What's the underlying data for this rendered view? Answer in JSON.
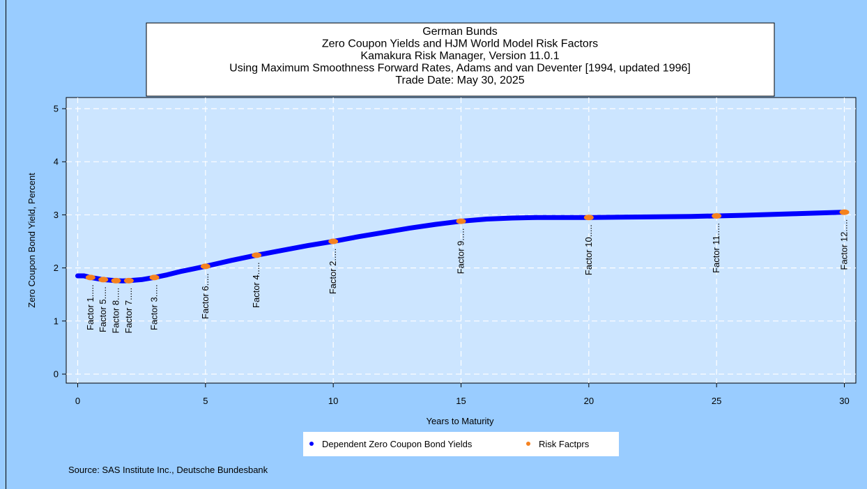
{
  "chart_data": {
    "type": "line",
    "title": [
      "German Bunds",
      "Zero Coupon Yields and HJM World Model Risk Factors",
      "Kamakura Risk Manager, Version 11.0.1",
      "Using Maximum Smoothness Forward Rates, Adams and van Deventer [1994, updated 1996]",
      "Trade Date: May 30, 2025"
    ],
    "x_label": "Years to Maturity",
    "y_label": "Zero Coupon Bond Yield, Percent",
    "source": "Source: SAS Institute Inc., Deutsche Bundesbank",
    "xlim": [
      -0.45,
      30.45
    ],
    "ylim": [
      -0.17,
      5.21
    ],
    "xticks": [
      0,
      5,
      10,
      15,
      20,
      25,
      30
    ],
    "yticks": [
      0,
      1,
      2,
      3,
      4,
      5
    ],
    "grid": true,
    "series": [
      {
        "name": "Dependent Zero Coupon Bond Yields",
        "color": "#0000ff",
        "x": [
          0,
          0.25,
          0.5,
          0.75,
          1,
          1.25,
          1.5,
          1.75,
          2,
          2.5,
          3,
          3.5,
          4,
          4.5,
          5,
          6,
          7,
          8,
          9,
          10,
          11,
          12,
          13,
          14,
          15,
          16,
          17,
          18,
          19,
          20,
          22,
          24,
          25,
          26,
          28,
          30
        ],
        "values": [
          1.85,
          1.85,
          1.82,
          1.8,
          1.78,
          1.77,
          1.76,
          1.755,
          1.76,
          1.78,
          1.82,
          1.87,
          1.93,
          1.98,
          2.03,
          2.14,
          2.24,
          2.33,
          2.42,
          2.5,
          2.59,
          2.67,
          2.75,
          2.82,
          2.88,
          2.92,
          2.94,
          2.95,
          2.95,
          2.95,
          2.96,
          2.97,
          2.98,
          2.99,
          3.02,
          3.05
        ]
      },
      {
        "name": "Risk Factprs",
        "color": "#f5821f",
        "x": [
          0.5,
          1,
          1.5,
          2,
          3,
          5,
          7,
          10,
          15,
          20,
          25,
          30
        ],
        "values": [
          1.82,
          1.78,
          1.76,
          1.76,
          1.82,
          2.03,
          2.24,
          2.5,
          2.88,
          2.95,
          2.98,
          3.05
        ],
        "labels": [
          "Factor 1.....",
          "Factor 5.....",
          "Factor 8.....",
          "Factor 7.....",
          "Factor 3.....",
          "Factor 6.....",
          "Factor 4.....",
          "Factor 2.....",
          "Factor 9.....",
          "Factor 10.....",
          "Factor 11.....",
          "Factor 12....."
        ]
      }
    ]
  }
}
